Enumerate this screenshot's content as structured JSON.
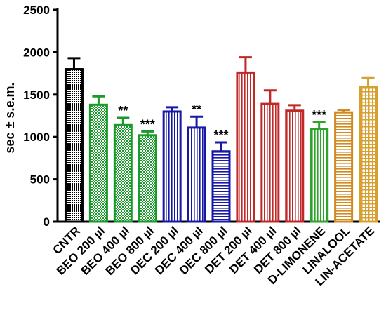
{
  "chart_data": {
    "type": "bar",
    "title": "",
    "xlabel": "",
    "ylabel": "sec ± s.e.m.",
    "ylim": [
      0,
      2500
    ],
    "yticks": [
      0,
      500,
      1000,
      1500,
      2000,
      2500
    ],
    "grid": false,
    "legend": "none",
    "categories": [
      "CNTR",
      "BEO 200 µl",
      "BEO 400 µl",
      "BEO 800 µl",
      "DEC 200 µl",
      "DEC 400 µl",
      "DEC 800 µl",
      "DET 200 µl",
      "DET 400 µl",
      "DET 800 µl",
      "D-LIMONENE",
      "LINALOOL",
      "LIN-ACETATE"
    ],
    "values": [
      1800,
      1380,
      1140,
      1020,
      1300,
      1110,
      830,
      1760,
      1390,
      1310,
      1090,
      1290,
      1590
    ],
    "errors": [
      130,
      100,
      85,
      45,
      50,
      130,
      105,
      180,
      160,
      65,
      85,
      30,
      105
    ],
    "significance": [
      "",
      "",
      "**",
      "***",
      "",
      "**",
      "***",
      "",
      "",
      "",
      "***",
      "",
      ""
    ],
    "colors": [
      "#000000",
      "#1a9a2a",
      "#1a9a2a",
      "#1a9a2a",
      "#1818a8",
      "#1818a8",
      "#1818a8",
      "#c02828",
      "#c02828",
      "#c02828",
      "#2aa52a",
      "#d08a20",
      "#d8a030"
    ],
    "patterns": [
      "crosshatch-fine",
      "checker",
      "checker",
      "checker",
      "vertical",
      "vertical",
      "horizontal",
      "vertical",
      "vertical",
      "vertical",
      "vertical",
      "horizontal",
      "grid"
    ]
  }
}
